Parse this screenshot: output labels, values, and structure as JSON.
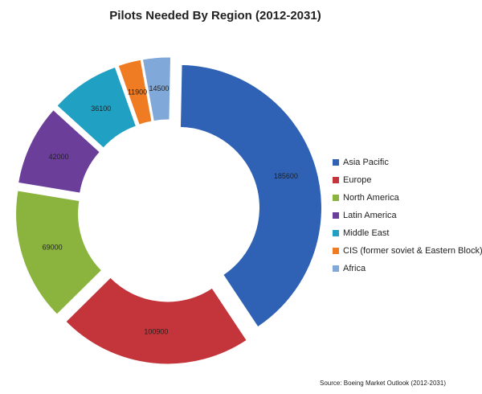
{
  "chart_data": {
    "type": "donut",
    "title": "Pilots Needed By Region (2012-2031)",
    "categories": [
      "Asia Pacific",
      "Europe",
      "North America",
      "Latin America",
      "Middle East",
      "CIS (former soviet & Eastern Block)",
      "Africa"
    ],
    "values": [
      185600,
      100900,
      69000,
      42000,
      36100,
      11900,
      14500
    ],
    "colors": [
      "#2f62b5",
      "#c3353a",
      "#8bb43f",
      "#6a3e99",
      "#20a0c2",
      "#ef7b22",
      "#80a8d9"
    ],
    "legend": "right",
    "source": "Source: Boeing Market Outlook (2012-2031)"
  }
}
